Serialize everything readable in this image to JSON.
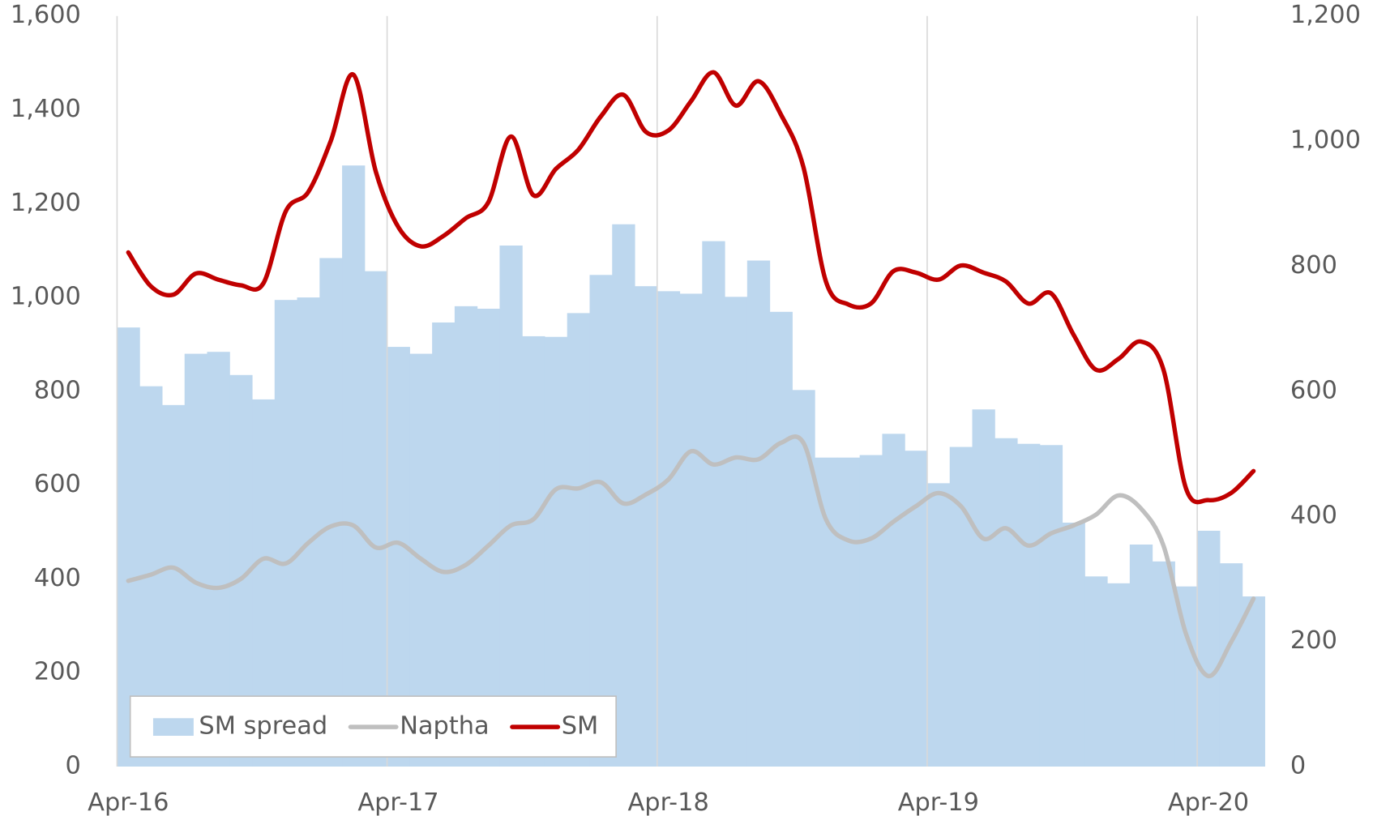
{
  "chart_data": {
    "type": "bar",
    "categories": [
      "Apr-16",
      null,
      null,
      null,
      null,
      null,
      null,
      null,
      null,
      null,
      null,
      null,
      "Apr-17",
      null,
      null,
      null,
      null,
      null,
      null,
      null,
      null,
      null,
      null,
      null,
      "Apr-18",
      null,
      null,
      null,
      null,
      null,
      null,
      null,
      null,
      null,
      null,
      null,
      "Apr-19",
      null,
      null,
      null,
      null,
      null,
      null,
      null,
      null,
      null,
      null,
      null,
      "Apr-20",
      null,
      null
    ],
    "ylim": [
      0,
      1600
    ],
    "yticks": [
      0,
      200,
      400,
      600,
      800,
      {
        "value": 1000,
        "label": "1,000"
      },
      {
        "value": 1200,
        "label": "1,200"
      },
      {
        "value": 1400,
        "label": "1,400"
      },
      {
        "value": 1600,
        "label": "1,600"
      }
    ],
    "y2lim": [
      0,
      1200
    ],
    "y2ticks": [
      0,
      200,
      400,
      600,
      800,
      {
        "value": 1000,
        "label": "1,000"
      },
      {
        "value": 1200,
        "label": "1,200"
      }
    ],
    "xgrid": true,
    "legend": "bottom-left",
    "series": [
      {
        "name": "SM spread",
        "type": "bar",
        "axis": "y2",
        "color": "#bdd7ee",
        "values": [
          702,
          608,
          578,
          660,
          663,
          626,
          587,
          746,
          750,
          813,
          961,
          792,
          671,
          660,
          710,
          736,
          732,
          833,
          688,
          687,
          725,
          786,
          867,
          768,
          760,
          756,
          840,
          751,
          809,
          727,
          602,
          494,
          494,
          498,
          532,
          505,
          453,
          511,
          571,
          525,
          516,
          514,
          390,
          304,
          293,
          355,
          328,
          288,
          377,
          325,
          272
        ]
      },
      {
        "name": "Naptha",
        "type": "line",
        "color": "#bfbfbf",
        "values": [
          396,
          409,
          424,
          392,
          381,
          400,
          443,
          433,
          477,
          512,
          514,
          467,
          477,
          443,
          415,
          430,
          471,
          514,
          527,
          591,
          593,
          606,
          561,
          580,
          612,
          672,
          644,
          659,
          655,
          690,
          690,
          527,
          482,
          486,
          522,
          555,
          583,
          555,
          486,
          508,
          471,
          497,
          514,
          537,
          578,
          550,
          471,
          283,
          193,
          265,
          358
        ]
      },
      {
        "name": "SM",
        "type": "line",
        "color": "#c00000",
        "values": [
          1096,
          1024,
          1006,
          1051,
          1038,
          1026,
          1030,
          1184,
          1225,
          1334,
          1475,
          1268,
          1150,
          1109,
          1131,
          1169,
          1203,
          1343,
          1218,
          1274,
          1315,
          1386,
          1432,
          1353,
          1356,
          1418,
          1480,
          1409,
          1461,
          1390,
          1278,
          1034,
          985,
          987,
          1056,
          1053,
          1038,
          1068,
          1053,
          1034,
          987,
          1009,
          921,
          846,
          869,
          906,
          846,
          593,
          568,
          583,
          630
        ]
      }
    ]
  }
}
